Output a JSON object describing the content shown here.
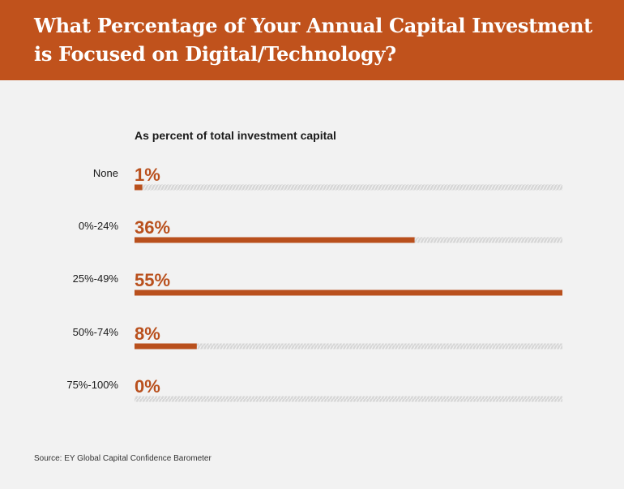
{
  "header": {
    "title_line1": "What Percentage of Your Annual Capital Investment",
    "title_line2": "is Focused on Digital/Technology?"
  },
  "source": "Source: EY Global Capital Confidence Barometer",
  "colors": {
    "header_bg": "#c0521c",
    "bar": "#b9501d",
    "value_text": "#b9501d",
    "track_hatch": "#d6d6d6",
    "background": "#f2f2f2"
  },
  "chart_data": {
    "type": "bar",
    "orientation": "horizontal",
    "title": "What Percentage of Your Annual Capital Investment is Focused on Digital/Technology?",
    "subtitle": "As percent of total investment capital",
    "categories": [
      "None",
      "0%-24%",
      "25%-49%",
      "50%-74%",
      "75%-100%"
    ],
    "values": [
      1,
      36,
      55,
      8,
      0
    ],
    "value_labels": [
      "1%",
      "36%",
      "55%",
      "8%",
      "0%"
    ],
    "xlim": [
      0,
      55
    ],
    "grid": false,
    "legend": "none"
  }
}
